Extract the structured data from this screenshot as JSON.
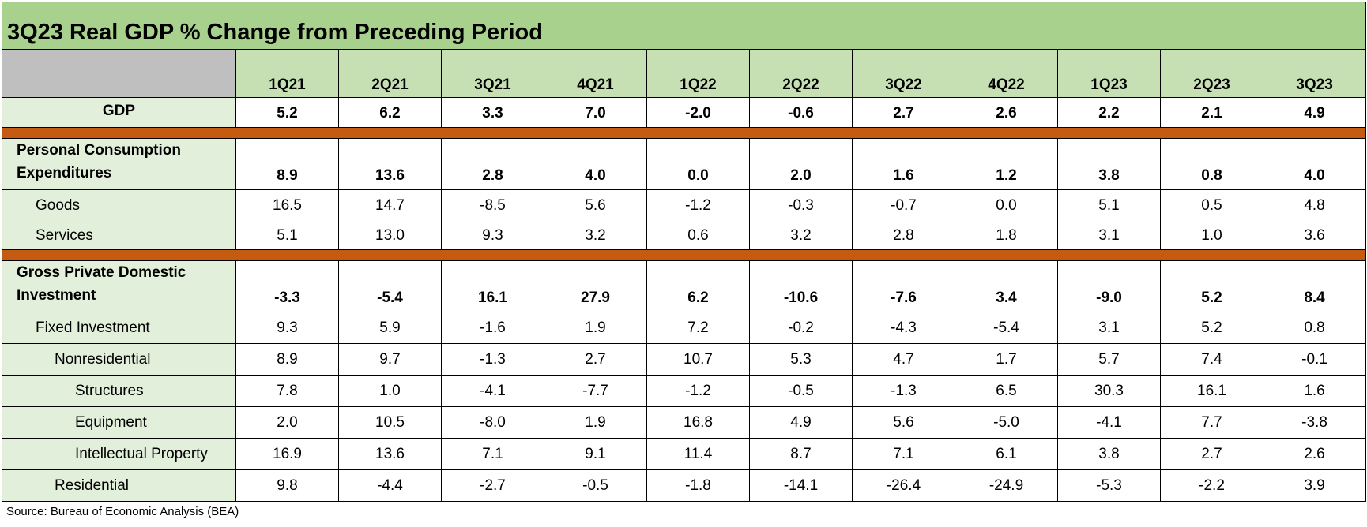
{
  "title": "3Q23 Real GDP % Change from Preceding Period",
  "columns": [
    "1Q21",
    "2Q21",
    "3Q21",
    "4Q21",
    "1Q22",
    "2Q22",
    "3Q22",
    "4Q22",
    "1Q23",
    "2Q23",
    "3Q23"
  ],
  "sections": [
    {
      "label": "GDP",
      "values": [
        "5.2",
        "6.2",
        "3.3",
        "7.0",
        "-2.0",
        "-0.6",
        "2.7",
        "2.6",
        "2.2",
        "2.1",
        "4.9"
      ]
    },
    {
      "label": "Personal Consumption Expenditures",
      "values": [
        "8.9",
        "13.6",
        "2.8",
        "4.0",
        "0.0",
        "2.0",
        "1.6",
        "1.2",
        "3.8",
        "0.8",
        "4.0"
      ],
      "children": [
        {
          "label": "Goods",
          "values": [
            "16.5",
            "14.7",
            "-8.5",
            "5.6",
            "-1.2",
            "-0.3",
            "-0.7",
            "0.0",
            "5.1",
            "0.5",
            "4.8"
          ]
        },
        {
          "label": "Services",
          "values": [
            "5.1",
            "13.0",
            "9.3",
            "3.2",
            "0.6",
            "3.2",
            "2.8",
            "1.8",
            "3.1",
            "1.0",
            "3.6"
          ]
        }
      ]
    },
    {
      "label": "Gross Private Domestic Investment",
      "values": [
        "-3.3",
        "-5.4",
        "16.1",
        "27.9",
        "6.2",
        "-10.6",
        "-7.6",
        "3.4",
        "-9.0",
        "5.2",
        "8.4"
      ],
      "children": [
        {
          "label": "Fixed Investment",
          "values": [
            "9.3",
            "5.9",
            "-1.6",
            "1.9",
            "7.2",
            "-0.2",
            "-4.3",
            "-5.4",
            "3.1",
            "5.2",
            "0.8"
          ],
          "children": [
            {
              "label": "Nonresidential",
              "values": [
                "8.9",
                "9.7",
                "-1.3",
                "2.7",
                "10.7",
                "5.3",
                "4.7",
                "1.7",
                "5.7",
                "7.4",
                "-0.1"
              ],
              "children": [
                {
                  "label": "Structures",
                  "values": [
                    "7.8",
                    "1.0",
                    "-4.1",
                    "-7.7",
                    "-1.2",
                    "-0.5",
                    "-1.3",
                    "6.5",
                    "30.3",
                    "16.1",
                    "1.6"
                  ]
                },
                {
                  "label": "Equipment",
                  "values": [
                    "2.0",
                    "10.5",
                    "-8.0",
                    "1.9",
                    "16.8",
                    "4.9",
                    "5.6",
                    "-5.0",
                    "-4.1",
                    "7.7",
                    "-3.8"
                  ]
                },
                {
                  "label": "Intellectual Property",
                  "values": [
                    "16.9",
                    "13.6",
                    "7.1",
                    "9.1",
                    "11.4",
                    "8.7",
                    "7.1",
                    "6.1",
                    "3.8",
                    "2.7",
                    "2.6"
                  ]
                }
              ]
            },
            {
              "label": "Residential",
              "values": [
                "9.8",
                "-4.4",
                "-2.7",
                "-0.5",
                "-1.8",
                "-14.1",
                "-26.4",
                "-24.9",
                "-5.3",
                "-2.2",
                "3.9"
              ]
            }
          ]
        }
      ]
    }
  ],
  "source": "Source: Bureau of Economic Analysis (BEA)"
}
